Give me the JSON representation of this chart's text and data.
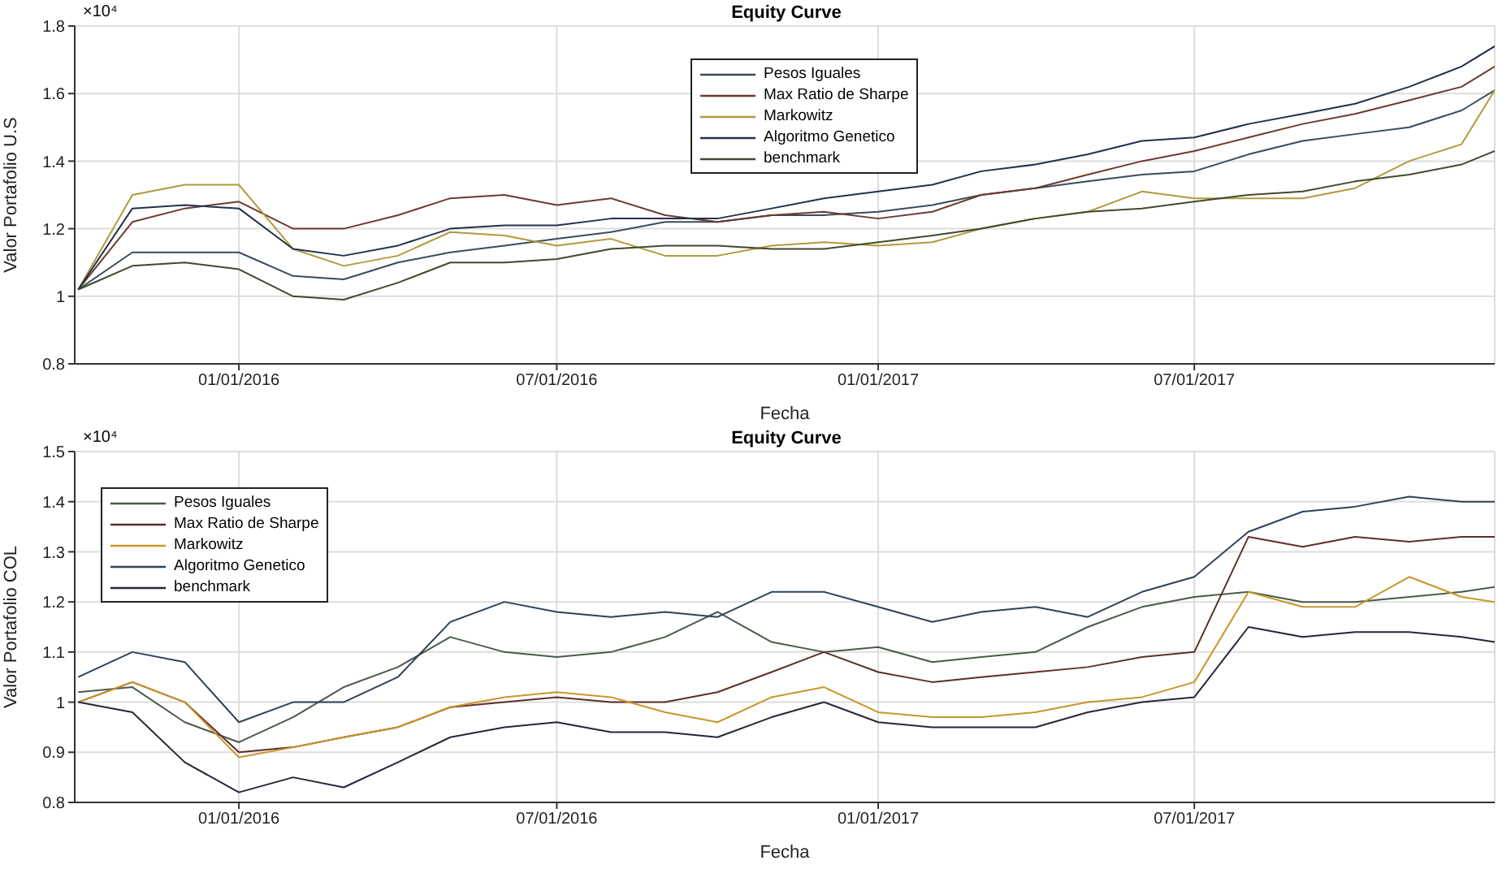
{
  "chart_data": [
    {
      "type": "line",
      "title": "Equity Curve",
      "xlabel": "Fecha",
      "ylabel": "Valor Portafolio U.S",
      "annotations": [
        "×10⁴"
      ],
      "x": [
        "2015-10-01",
        "2015-11-01",
        "2015-12-01",
        "2016-01-01",
        "2016-02-01",
        "2016-03-01",
        "2016-04-01",
        "2016-05-01",
        "2016-06-01",
        "2016-07-01",
        "2016-08-01",
        "2016-09-01",
        "2016-10-01",
        "2016-11-01",
        "2016-12-01",
        "2017-01-01",
        "2017-02-01",
        "2017-03-01",
        "2017-04-01",
        "2017-05-01",
        "2017-06-01",
        "2017-07-01",
        "2017-08-01",
        "2017-09-01",
        "2017-10-01",
        "2017-11-01",
        "2017-12-01",
        "2017-12-20"
      ],
      "series": [
        {
          "name": "Pesos Iguales",
          "color": "#3a4a5c",
          "values": [
            1.02,
            1.13,
            1.13,
            1.13,
            1.06,
            1.05,
            1.1,
            1.13,
            1.15,
            1.17,
            1.19,
            1.22,
            1.22,
            1.24,
            1.24,
            1.25,
            1.27,
            1.3,
            1.32,
            1.34,
            1.36,
            1.37,
            1.42,
            1.46,
            1.48,
            1.5,
            1.55,
            1.61
          ]
        },
        {
          "name": "Max Ratio de Sharpe",
          "color": "#6b3a2e",
          "values": [
            1.02,
            1.22,
            1.26,
            1.28,
            1.2,
            1.2,
            1.24,
            1.29,
            1.3,
            1.27,
            1.29,
            1.24,
            1.22,
            1.24,
            1.25,
            1.23,
            1.25,
            1.3,
            1.32,
            1.36,
            1.4,
            1.43,
            1.47,
            1.51,
            1.54,
            1.58,
            1.62,
            1.68
          ]
        },
        {
          "name": "Markowitz",
          "color": "#b09a3c",
          "values": [
            1.02,
            1.3,
            1.33,
            1.33,
            1.14,
            1.09,
            1.12,
            1.19,
            1.18,
            1.15,
            1.17,
            1.12,
            1.12,
            1.15,
            1.16,
            1.15,
            1.16,
            1.2,
            1.23,
            1.25,
            1.31,
            1.29,
            1.29,
            1.29,
            1.32,
            1.4,
            1.45,
            1.61
          ]
        },
        {
          "name": "Algoritmo Genetico",
          "color": "#22304a",
          "values": [
            1.02,
            1.26,
            1.27,
            1.26,
            1.14,
            1.12,
            1.15,
            1.2,
            1.21,
            1.21,
            1.23,
            1.23,
            1.23,
            1.26,
            1.29,
            1.31,
            1.33,
            1.37,
            1.39,
            1.42,
            1.46,
            1.47,
            1.51,
            1.54,
            1.57,
            1.62,
            1.68,
            1.74
          ]
        },
        {
          "name": "benchmark",
          "color": "#3f4a2c",
          "values": [
            1.02,
            1.09,
            1.1,
            1.08,
            1.0,
            0.99,
            1.04,
            1.1,
            1.1,
            1.11,
            1.14,
            1.15,
            1.15,
            1.14,
            1.14,
            1.16,
            1.18,
            1.2,
            1.23,
            1.25,
            1.26,
            1.28,
            1.3,
            1.31,
            1.34,
            1.36,
            1.39,
            1.43
          ]
        }
      ],
      "xlim": [
        "2015-09-29",
        "2017-12-20"
      ],
      "xticks": [
        {
          "value": "2016-01-01",
          "label": "01/01/2016"
        },
        {
          "value": "2016-07-01",
          "label": "07/01/2016"
        },
        {
          "value": "2017-01-01",
          "label": "01/01/2017"
        },
        {
          "value": "2017-07-01",
          "label": "07/01/2017"
        }
      ],
      "ylim": [
        0.8,
        1.8
      ],
      "yticks": [
        0.8,
        1,
        1.2,
        1.4,
        1.6,
        1.8
      ],
      "grid": true,
      "legend": "top"
    },
    {
      "type": "line",
      "title": "Equity Curve",
      "xlabel": "Fecha",
      "ylabel": "Valor Portafolio COL",
      "annotations": [
        "×10⁴"
      ],
      "x": [
        "2015-10-01",
        "2015-11-01",
        "2015-12-01",
        "2016-01-01",
        "2016-02-01",
        "2016-03-01",
        "2016-04-01",
        "2016-05-01",
        "2016-06-01",
        "2016-07-01",
        "2016-08-01",
        "2016-09-01",
        "2016-10-01",
        "2016-11-01",
        "2016-12-01",
        "2017-01-01",
        "2017-02-01",
        "2017-03-01",
        "2017-04-01",
        "2017-05-01",
        "2017-06-01",
        "2017-07-01",
        "2017-08-01",
        "2017-09-01",
        "2017-10-01",
        "2017-11-01",
        "2017-12-01",
        "2017-12-20"
      ],
      "series": [
        {
          "name": "Pesos Iguales",
          "color": "#4a5a48",
          "values": [
            1.02,
            1.03,
            0.96,
            0.92,
            0.97,
            1.03,
            1.07,
            1.13,
            1.1,
            1.09,
            1.1,
            1.13,
            1.18,
            1.12,
            1.1,
            1.11,
            1.08,
            1.09,
            1.1,
            1.15,
            1.19,
            1.21,
            1.22,
            1.2,
            1.2,
            1.21,
            1.22,
            1.23
          ]
        },
        {
          "name": "Max Ratio de Sharpe",
          "color": "#5e2e2a",
          "values": [
            1.0,
            1.04,
            1.0,
            0.9,
            0.91,
            0.93,
            0.95,
            0.99,
            1.0,
            1.01,
            1.0,
            1.0,
            1.02,
            1.06,
            1.1,
            1.06,
            1.04,
            1.05,
            1.06,
            1.07,
            1.09,
            1.1,
            1.33,
            1.31,
            1.33,
            1.32,
            1.33,
            1.33
          ]
        },
        {
          "name": "Markowitz",
          "color": "#c8962a",
          "values": [
            1.0,
            1.04,
            1.0,
            0.89,
            0.91,
            0.93,
            0.95,
            0.99,
            1.01,
            1.02,
            1.01,
            0.98,
            0.96,
            1.01,
            1.03,
            0.98,
            0.97,
            0.97,
            0.98,
            1.0,
            1.01,
            1.04,
            1.22,
            1.19,
            1.19,
            1.25,
            1.21,
            1.2
          ]
        },
        {
          "name": "Algoritmo Genetico",
          "color": "#2e4256",
          "values": [
            1.05,
            1.1,
            1.08,
            0.96,
            1.0,
            1.0,
            1.05,
            1.16,
            1.2,
            1.18,
            1.17,
            1.18,
            1.17,
            1.22,
            1.22,
            1.19,
            1.16,
            1.18,
            1.19,
            1.17,
            1.22,
            1.25,
            1.34,
            1.38,
            1.39,
            1.41,
            1.4,
            1.4
          ]
        },
        {
          "name": "benchmark",
          "color": "#2a2438",
          "values": [
            1.0,
            0.98,
            0.88,
            0.82,
            0.85,
            0.83,
            0.88,
            0.93,
            0.95,
            0.96,
            0.94,
            0.94,
            0.93,
            0.97,
            1.0,
            0.96,
            0.95,
            0.95,
            0.95,
            0.98,
            1.0,
            1.01,
            1.15,
            1.13,
            1.14,
            1.14,
            1.13,
            1.12
          ]
        }
      ],
      "xlim": [
        "2015-09-29",
        "2017-12-20"
      ],
      "xticks": [
        {
          "value": "2016-01-01",
          "label": "01/01/2016"
        },
        {
          "value": "2016-07-01",
          "label": "07/01/2016"
        },
        {
          "value": "2017-01-01",
          "label": "01/01/2017"
        },
        {
          "value": "2017-07-01",
          "label": "07/01/2017"
        }
      ],
      "ylim": [
        0.8,
        1.5
      ],
      "yticks": [
        0.8,
        0.9,
        1,
        1.1,
        1.2,
        1.3,
        1.4,
        1.5
      ],
      "grid": true,
      "legend": "top left"
    }
  ]
}
